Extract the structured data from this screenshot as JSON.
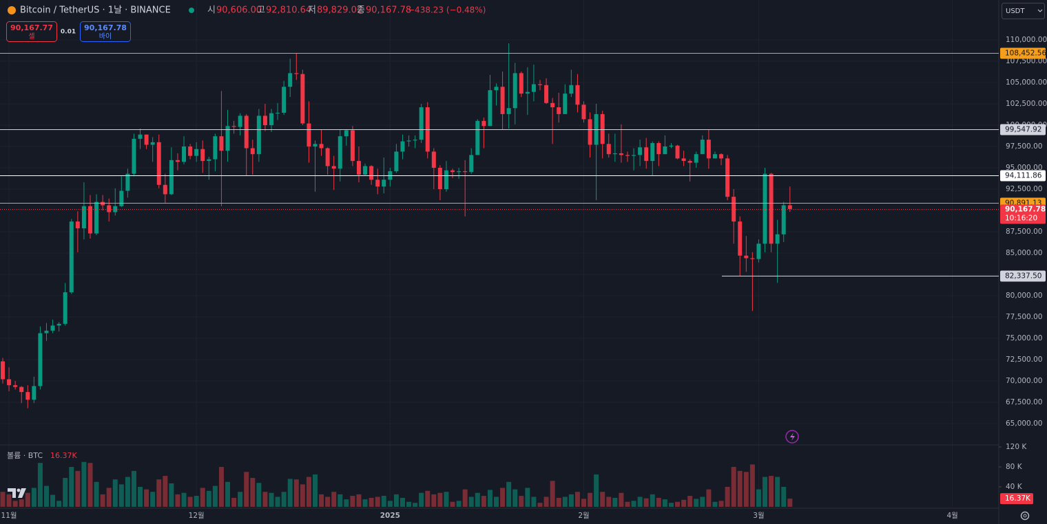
{
  "chart_data": {
    "type": "candlestick",
    "header": {
      "symbol": "Bitcoin / TetherUS · 1날 · BINANCE",
      "ohlc": [
        {
          "key": "시",
          "value": "90,606.00"
        },
        {
          "key": "고",
          "value": "92,810.64"
        },
        {
          "key": "저",
          "value": "89,829.02"
        },
        {
          "key": "종",
          "value": "90,167.78"
        }
      ],
      "change": "−438.23 (−0.48%)"
    },
    "sell": {
      "price": "90,167.77",
      "label": "셀"
    },
    "spread": "0.01",
    "buy": {
      "price": "90,167.78",
      "label": "바이"
    },
    "currency": "USDT",
    "volume_title": "볼륨 · BTC",
    "volume_last_label": "16.37K",
    "last_price_label": "90,167.78",
    "countdown": "10:16:20",
    "up_color": "#089981",
    "down_color": "#f23645",
    "volume_up_color": "#0f5e56",
    "volume_down_color": "#7a2c35",
    "grid": true,
    "open": [
      72300,
      70200,
      69500,
      69300,
      68700,
      67800,
      69400,
      75600,
      75900,
      76500,
      76700,
      80400,
      88700,
      87900,
      90500,
      87300,
      91000,
      90600,
      89800,
      90500,
      92300,
      94300,
      98400,
      98900,
      97700,
      98000,
      93000,
      91900,
      95900,
      95700,
      97500,
      96400,
      97200,
      95800,
      96000,
      98700,
      97000,
      99900,
      99800,
      101100,
      97300,
      96600,
      101100,
      100000,
      101400,
      101450,
      104500,
      106100,
      106000,
      100200,
      97500,
      97800,
      97300,
      95200,
      94900,
      98700,
      99400,
      95800,
      94200,
      95200,
      93600,
      92800,
      93600,
      94600,
      96900,
      98100,
      98200,
      98300,
      102100,
      96900,
      95000,
      92500,
      94700,
      94500,
      94600,
      94500,
      96500,
      100500,
      99900,
      104100,
      104500,
      101300,
      102000,
      106100,
      103700,
      103900,
      104800,
      104700,
      102600,
      102100,
      101300,
      103700,
      104700,
      102400,
      100700,
      97700,
      101300,
      97800,
      96600,
      96700,
      96500,
      96400,
      96500,
      97400,
      95800,
      97900,
      96600,
      97500,
      97600,
      96100,
      95800,
      95600,
      96600,
      98300,
      96100,
      96600,
      96100,
      91600,
      88700,
      84700,
      84400,
      84300,
      86100,
      94300,
      86100,
      87200,
      90606
    ],
    "high": [
      72700,
      71600,
      70000,
      69400,
      69500,
      70500,
      76400,
      76800,
      77200,
      76900,
      81500,
      89000,
      89900,
      93300,
      91800,
      91900,
      91800,
      91400,
      92600,
      94000,
      94900,
      99000,
      99600,
      98900,
      98600,
      98900,
      94300,
      97400,
      96700,
      98700,
      97800,
      98000,
      98200,
      96300,
      99000,
      104000,
      101800,
      100500,
      101400,
      101300,
      98300,
      101900,
      102500,
      101900,
      102600,
      105200,
      107800,
      108400,
      106500,
      102800,
      98200,
      99500,
      97400,
      96400,
      99500,
      99500,
      99900,
      97500,
      95500,
      95300,
      94900,
      96200,
      95000,
      97800,
      98900,
      98800,
      98800,
      102500,
      102700,
      97300,
      95300,
      95800,
      94900,
      95000,
      95900,
      97300,
      100700,
      100900,
      105900,
      104900,
      106300,
      109600,
      107300,
      106300,
      106800,
      107100,
      105300,
      105500,
      103200,
      103800,
      104800,
      106500,
      106000,
      102800,
      101500,
      102500,
      101700,
      99000,
      99000,
      100100,
      96900,
      97300,
      98300,
      98500,
      98100,
      98100,
      98800,
      97900,
      97700,
      97000,
      96000,
      96900,
      98800,
      99500,
      96900,
      96700,
      96500,
      92500,
      89300,
      87000,
      85100,
      86600,
      95000,
      94400,
      88900,
      91000,
      92810.64
    ],
    "low": [
      69700,
      68800,
      69000,
      67400,
      66800,
      67400,
      69000,
      74700,
      75600,
      75800,
      76500,
      80200,
      85100,
      86600,
      86700,
      87100,
      90000,
      88700,
      89400,
      90400,
      91500,
      94000,
      97200,
      97200,
      95700,
      92600,
      90800,
      91800,
      94700,
      95400,
      96000,
      95700,
      94400,
      93600,
      94600,
      90500,
      95700,
      99000,
      98800,
      94100,
      94200,
      95700,
      99300,
      99200,
      100600,
      101200,
      103300,
      105300,
      100000,
      95600,
      92200,
      96400,
      94200,
      92400,
      93400,
      97600,
      95200,
      93300,
      94100,
      93000,
      91900,
      92000,
      92800,
      94400,
      96000,
      97500,
      97300,
      97900,
      96100,
      92500,
      91200,
      92200,
      93800,
      93700,
      89300,
      94300,
      96500,
      97300,
      99900,
      102300,
      99500,
      99600,
      100100,
      103300,
      101200,
      102800,
      104100,
      102500,
      97800,
      100300,
      101300,
      103300,
      101500,
      100300,
      96200,
      91200,
      96100,
      96200,
      95700,
      95600,
      95700,
      94700,
      95200,
      94900,
      94100,
      95200,
      96600,
      97300,
      96000,
      95200,
      93400,
      95000,
      96600,
      94900,
      96100,
      95300,
      91200,
      86100,
      82300,
      82800,
      78200,
      83900,
      85100,
      85100,
      81500,
      86300,
      89829.02
    ],
    "close": [
      70200,
      69500,
      69300,
      68700,
      67800,
      69400,
      75600,
      75900,
      76500,
      76700,
      80400,
      88700,
      87900,
      90500,
      87300,
      91000,
      90600,
      89800,
      90500,
      92300,
      94300,
      98400,
      98900,
      97700,
      98000,
      93000,
      91900,
      95900,
      95700,
      97500,
      96400,
      97200,
      95800,
      96000,
      98700,
      97000,
      99900,
      99800,
      101100,
      97300,
      96600,
      101100,
      100000,
      101400,
      101450,
      104500,
      106100,
      106000,
      100200,
      97500,
      97800,
      97300,
      95200,
      94900,
      98700,
      99400,
      95800,
      94200,
      95200,
      93600,
      92800,
      93600,
      94600,
      96900,
      98100,
      98200,
      98300,
      102100,
      96900,
      95000,
      92500,
      94700,
      94500,
      94600,
      94500,
      96500,
      100500,
      99900,
      104100,
      104500,
      101300,
      102000,
      106100,
      103700,
      103900,
      104800,
      104700,
      102600,
      102100,
      101300,
      103700,
      104700,
      102400,
      100700,
      97700,
      101300,
      97800,
      96600,
      96700,
      96500,
      96400,
      96500,
      97400,
      95800,
      97900,
      96600,
      97500,
      97600,
      96100,
      95800,
      95600,
      96600,
      98300,
      96100,
      96600,
      96100,
      91600,
      88700,
      84700,
      84400,
      84300,
      86100,
      94300,
      86100,
      87200,
      90606,
      90167.78
    ],
    "volume": [
      30,
      25,
      12,
      15,
      28,
      38,
      88,
      42,
      24,
      12,
      58,
      80,
      72,
      90,
      88,
      50,
      25,
      38,
      55,
      45,
      60,
      72,
      40,
      35,
      30,
      55,
      62,
      47,
      25,
      28,
      20,
      22,
      38,
      32,
      42,
      80,
      50,
      18,
      30,
      70,
      58,
      48,
      30,
      28,
      20,
      30,
      56,
      55,
      45,
      60,
      65,
      25,
      20,
      30,
      25,
      15,
      22,
      25,
      15,
      18,
      20,
      22,
      12,
      25,
      18,
      10,
      8,
      28,
      32,
      25,
      28,
      30,
      10,
      12,
      35,
      20,
      28,
      22,
      34,
      20,
      38,
      50,
      35,
      22,
      38,
      20,
      8,
      20,
      52,
      18,
      20,
      25,
      30,
      16,
      28,
      65,
      30,
      20,
      18,
      28,
      10,
      12,
      20,
      17,
      25,
      18,
      15,
      8,
      10,
      14,
      22,
      16,
      20,
      35,
      10,
      12,
      40,
      80,
      72,
      70,
      85,
      35,
      60,
      62,
      60,
      40,
      16.37
    ],
    "xlim": [
      -0.441,
      159.43
    ],
    "xticks": [
      {
        "value": 1,
        "label": "11월"
      },
      {
        "value": 31,
        "label": "12월"
      },
      {
        "value": 62,
        "label": "2025"
      },
      {
        "value": 93,
        "label": "2월"
      },
      {
        "value": 121,
        "label": "3월"
      },
      {
        "value": 152,
        "label": "4월"
      }
    ],
    "ylim": [
      62660,
      114680
    ],
    "yticks": [
      {
        "value": 110000,
        "label": "110,000.00"
      },
      {
        "value": 107500,
        "label": "107,500.00"
      },
      {
        "value": 105000,
        "label": "105,000.00"
      },
      {
        "value": 102500,
        "label": "102,500.00"
      },
      {
        "value": 100000,
        "label": "100,000.00"
      },
      {
        "value": 97500,
        "label": "97,500.00"
      },
      {
        "value": 95000,
        "label": "95,000.00"
      },
      {
        "value": 92500,
        "label": "92,500.00"
      },
      {
        "value": 90000,
        "label": "90,000.00"
      },
      {
        "value": 87500,
        "label": "87,500.00"
      },
      {
        "value": 85000,
        "label": "85,000.00"
      },
      {
        "value": 82500,
        "label": "82,500.00"
      },
      {
        "value": 80000,
        "label": "80,000.00"
      },
      {
        "value": 77500,
        "label": "77,500.00"
      },
      {
        "value": 75000,
        "label": "75,000.00"
      },
      {
        "value": 72500,
        "label": "72,500.00"
      },
      {
        "value": 70000,
        "label": "70,000.00"
      },
      {
        "value": 67500,
        "label": "67,500.00"
      },
      {
        "value": 65000,
        "label": "65,000.00"
      }
    ],
    "volume_lim": [
      0,
      122.8
    ],
    "volume_ticks": [
      {
        "value": 120,
        "label": "120 K"
      },
      {
        "value": 80,
        "label": "80 K"
      },
      {
        "value": 40,
        "label": "40 K"
      }
    ],
    "levels": [
      {
        "value": 108452.56,
        "label": "108,452.56",
        "color": "#f59e1b"
      },
      {
        "value": 99547.92,
        "label": "99,547.92",
        "color": "#d1d4dc"
      },
      {
        "value": 94111.86,
        "label": "94,111.86",
        "color": "#ffffff"
      },
      {
        "value": 90891.13,
        "label": "90,891.13",
        "color": "#f59e1b"
      },
      {
        "value": 82337.5,
        "label": "82,337.50",
        "color": "#d1d4dc"
      }
    ]
  }
}
